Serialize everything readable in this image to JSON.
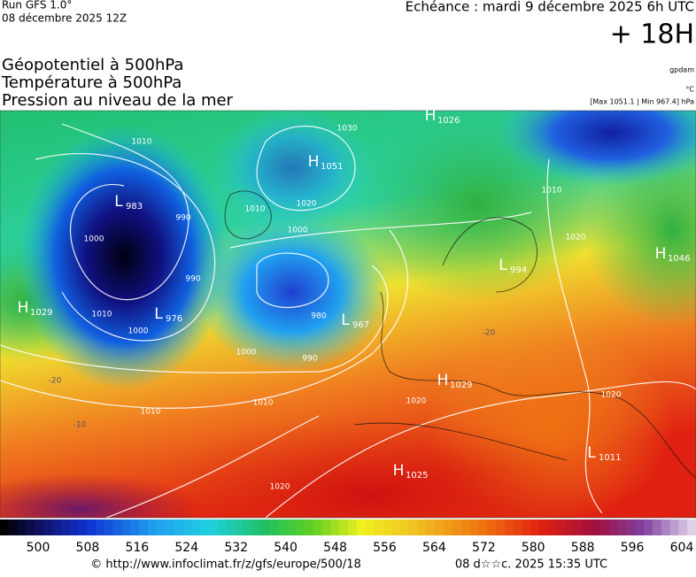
{
  "header": {
    "run": "Run GFS 1.0°",
    "date": "08 décembre 2025 12Z",
    "echeance": "Echéance : mardi 9 décembre 2025 6h UTC",
    "lead": "+ 18H",
    "titles": [
      "Géopotentiel à 500hPa",
      "Température à 500hPa",
      "Pression au niveau de la mer"
    ],
    "units": [
      "gpdam",
      "°C"
    ],
    "range": "[Max 1051.1 | Min 967.4] hPa"
  },
  "centers": [
    {
      "type": "H",
      "value": 1026
    },
    {
      "type": "H",
      "value": 1051
    },
    {
      "type": "L",
      "value": 983
    },
    {
      "type": "H",
      "value": 1029
    },
    {
      "type": "L",
      "value": 976
    },
    {
      "type": "L",
      "value": 967
    },
    {
      "type": "H",
      "value": 1046
    },
    {
      "type": "L",
      "value": 994
    },
    {
      "type": "H",
      "value": 1029
    },
    {
      "type": "H",
      "value": 1025
    },
    {
      "type": "L",
      "value": 1011
    }
  ],
  "isobar_labels": [
    1010,
    990,
    1000,
    990,
    1010,
    1000,
    1000,
    990,
    980,
    1000,
    1020,
    1030,
    1010,
    1010,
    1010,
    1020,
    1020,
    1020,
    1010,
    1020
  ],
  "temperature_labels": [
    -20,
    -10,
    -20
  ],
  "colorbar": {
    "labels": [
      500,
      508,
      516,
      524,
      532,
      540,
      548,
      556,
      564,
      572,
      580,
      588,
      596,
      604
    ]
  },
  "footer": {
    "url": "© http://www.infoclimat.fr/z/gfs/europe/500/18",
    "timestamp": "08 d☆☆c. 2025 15:35 UTC"
  }
}
